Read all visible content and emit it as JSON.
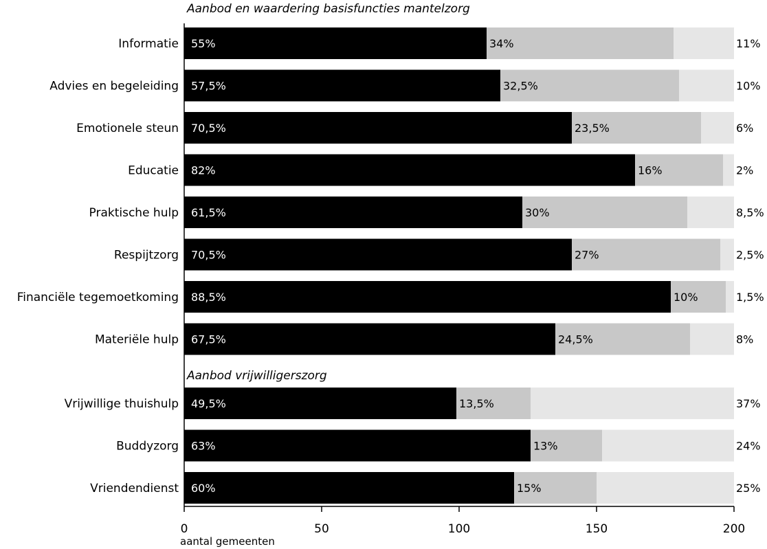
{
  "colors": {
    "primary": "#000000",
    "secondary": "#c8c8c8",
    "tertiary": "#e6e6e6"
  },
  "chart_data": {
    "type": "bar",
    "orientation": "horizontal",
    "stacked": true,
    "total_gemeenten": 200,
    "xlabel": "aantal gemeenten",
    "xlim": [
      0,
      200
    ],
    "xticks": [
      0,
      50,
      100,
      150,
      200
    ],
    "groups": [
      {
        "title": "Aanbod en waardering basisfuncties mantelzorg",
        "rows": [
          {
            "category": "Informatie",
            "values": [
              55,
              34,
              11
            ],
            "labels": [
              "55%",
              "34%",
              "11%"
            ]
          },
          {
            "category": "Advies en begeleiding",
            "values": [
              57.5,
              32.5,
              10
            ],
            "labels": [
              "57,5%",
              "32,5%",
              "10%"
            ]
          },
          {
            "category": "Emotionele steun",
            "values": [
              70.5,
              23.5,
              6
            ],
            "labels": [
              "70,5%",
              "23,5%",
              "6%"
            ]
          },
          {
            "category": "Educatie",
            "values": [
              82,
              16,
              2
            ],
            "labels": [
              "82%",
              "16%",
              "2%"
            ]
          },
          {
            "category": "Praktische hulp",
            "values": [
              61.5,
              30,
              8.5
            ],
            "labels": [
              "61,5%",
              "30%",
              "8,5%"
            ]
          },
          {
            "category": "Respijtzorg",
            "values": [
              70.5,
              27,
              2.5
            ],
            "labels": [
              "70,5%",
              "27%",
              "2,5%"
            ]
          },
          {
            "category": "Financiële tegemoetkoming",
            "values": [
              88.5,
              10,
              1.5
            ],
            "labels": [
              "88,5%",
              "10%",
              "1,5%"
            ]
          },
          {
            "category": "Materiële hulp",
            "values": [
              67.5,
              24.5,
              8
            ],
            "labels": [
              "67,5%",
              "24,5%",
              "8%"
            ]
          }
        ]
      },
      {
        "title": "Aanbod vrijwilligerszorg",
        "rows": [
          {
            "category": "Vrijwillige thuishulp",
            "values": [
              49.5,
              13.5,
              37
            ],
            "labels": [
              "49,5%",
              "13,5%",
              "37%"
            ]
          },
          {
            "category": "Buddyzorg",
            "values": [
              63,
              13,
              24
            ],
            "labels": [
              "63%",
              "13%",
              "24%"
            ]
          },
          {
            "category": "Vriendendienst",
            "values": [
              60,
              15,
              25
            ],
            "labels": [
              "60%",
              "15%",
              "25%"
            ]
          }
        ]
      }
    ]
  }
}
